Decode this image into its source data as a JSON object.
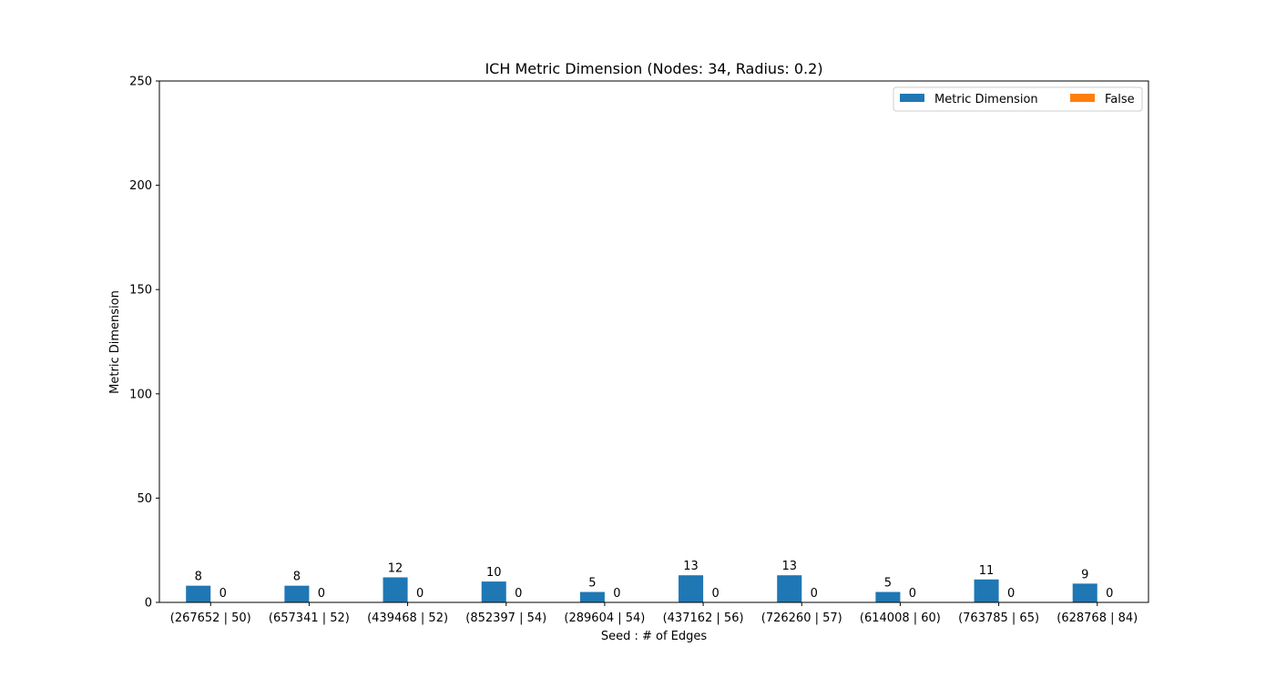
{
  "chart_data": {
    "type": "bar",
    "title": "ICH Metric Dimension (Nodes: 34, Radius: 0.2)",
    "xlabel": "Seed : # of Edges",
    "ylabel": "Metric Dimension",
    "ylim": [
      0,
      250
    ],
    "yticks": [
      0,
      50,
      100,
      150,
      200,
      250
    ],
    "categories": [
      "(267652 | 50)",
      "(657341 | 52)",
      "(439468 | 52)",
      "(852397 | 54)",
      "(289604 | 54)",
      "(437162 | 56)",
      "(726260 | 57)",
      "(614008 | 60)",
      "(763785 | 65)",
      "(628768 | 84)"
    ],
    "series": [
      {
        "name": "Metric Dimension",
        "color": "#1f77b4",
        "values": [
          8,
          8,
          12,
          10,
          5,
          13,
          13,
          5,
          11,
          9
        ]
      },
      {
        "name": "False",
        "color": "#ff7f0e",
        "values": [
          0,
          0,
          0,
          0,
          0,
          0,
          0,
          0,
          0,
          0
        ]
      }
    ],
    "grid": false,
    "legend": "top-right",
    "legend_columns": 2
  }
}
